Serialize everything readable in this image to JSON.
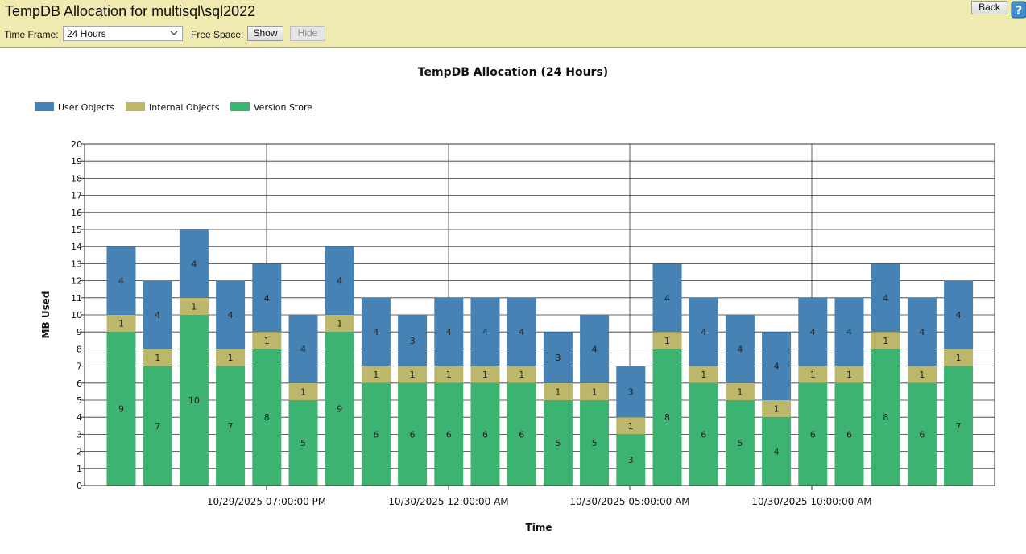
{
  "header": {
    "title": "TempDB Allocation for multisql\\sql2022",
    "time_frame_label": "Time Frame:",
    "time_frame_value": "24 Hours",
    "free_space_label": "Free Space:",
    "show_label": "Show",
    "hide_label": "Hide",
    "back_label": "Back"
  },
  "colors": {
    "header_bg": "#eeeab0",
    "user_objects": "#4682b4",
    "internal_objects": "#bdb76b",
    "version_store": "#3cb371"
  },
  "chart_data": {
    "type": "bar",
    "stacked": true,
    "title": "TempDB Allocation (24 Hours)",
    "xlabel": "Time",
    "ylabel": "MB Used",
    "ylim": [
      0,
      20
    ],
    "yticks": [
      0,
      1,
      2,
      3,
      4,
      5,
      6,
      7,
      8,
      9,
      10,
      11,
      12,
      13,
      14,
      15,
      16,
      17,
      18,
      19,
      20
    ],
    "xtick_labels": [
      "10/29/2025 07:00:00 PM",
      "10/30/2025 12:00:00 AM",
      "10/30/2025 05:00:00 AM",
      "10/30/2025 10:00:00 AM"
    ],
    "legend_position": "top-left",
    "grid": true,
    "series": [
      {
        "name": "Version Store",
        "values": [
          9,
          7,
          10,
          7,
          8,
          5,
          9,
          6,
          6,
          6,
          6,
          6,
          5,
          5,
          3,
          8,
          6,
          5,
          4,
          6,
          6,
          8,
          6,
          7
        ]
      },
      {
        "name": "Internal Objects",
        "values": [
          1,
          1,
          1,
          1,
          1,
          1,
          1,
          1,
          1,
          1,
          1,
          1,
          1,
          1,
          1,
          1,
          1,
          1,
          1,
          1,
          1,
          1,
          1,
          1
        ]
      },
      {
        "name": "User Objects",
        "values": [
          4,
          4,
          4,
          4,
          4,
          4,
          4,
          4,
          3,
          4,
          4,
          4,
          3,
          4,
          3,
          4,
          4,
          4,
          4,
          4,
          4,
          4,
          4,
          4
        ]
      }
    ]
  }
}
